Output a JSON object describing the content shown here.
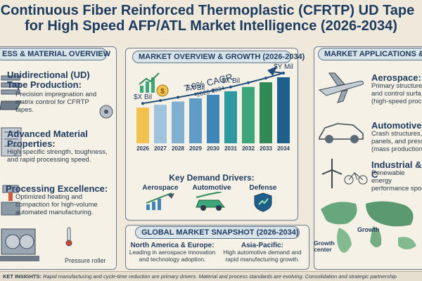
{
  "title": {
    "line1": "Continuous Fiber Reinforced Thermoplastic (CFRTP) UD Tape",
    "line2": "for High Speed AFP/ATL Market Intelligence (2026-2034)"
  },
  "left_panel": {
    "header": "ESS & MATERIAL OVERVIEW",
    "items": [
      {
        "heading": "Unidirectional (UD) Tape Production:",
        "desc": "Precision impregnation and matrix control for CFRTP tapes."
      },
      {
        "heading": "Advanced Material Properties:",
        "desc": "High specific strength, toughness, and rapid processing speed."
      },
      {
        "heading": "Processing Excellence:",
        "desc": "Optimized heating and compaction for high-volume automated manufacturing."
      }
    ],
    "roller_label": "Pressure roller"
  },
  "center_panel": {
    "header": "MARKET OVERVIEW & GROWTH (2026-2034)",
    "cagr_label": "7.9% CAGR",
    "cagr_period": "2026-2034",
    "drivers_title": "Key Demand Drivers:",
    "drivers": [
      "Aerospace",
      "Automotive",
      "Defense"
    ]
  },
  "chart_data": {
    "type": "bar",
    "categories": [
      "2026",
      "2027",
      "2028",
      "2029",
      "2030",
      "2031",
      "2032",
      "2033",
      "2034"
    ],
    "values": [
      1.0,
      1.08,
      1.17,
      1.26,
      1.36,
      1.46,
      1.58,
      1.71,
      1.85
    ],
    "point_labels": [
      {
        "index": 0,
        "text": "$X Bil"
      },
      {
        "index": 3,
        "text": "$X Bil"
      },
      {
        "index": 5,
        "text": "$X Bil"
      },
      {
        "index": 8,
        "text": "$Y Mil"
      }
    ],
    "trend_line": true,
    "colors": [
      "#f2c14e",
      "#9fc3dc",
      "#7fb0d2",
      "#5f9cc6",
      "#3f86b8",
      "#2e9aa0",
      "#3aa67a",
      "#2f8a57",
      "#1f5f8b"
    ]
  },
  "snapshot": {
    "header": "GLOBAL MARKET SNAPSHOT (2026-2034)",
    "regions": [
      {
        "name": "North America & Europe:",
        "desc": "Leading in aerospace innovation and technology adoption."
      },
      {
        "name": "Asia-Pacific:",
        "desc": "High automotive demand and rapid manufacturing growth."
      }
    ]
  },
  "right_panel": {
    "header": "MARKET APPLICATIONS & US",
    "items": [
      {
        "heading": "Aerospace:",
        "desc": "Primary structure and control surfa (high-speed proc"
      },
      {
        "heading": "Automotive:",
        "desc": "Crash structures, panels, and press (mass production"
      },
      {
        "heading": "Industrial & C",
        "desc": "Renewable energy performance spor and advanced ma"
      }
    ],
    "map_labels": {
      "growth": "Growth",
      "growth_center": "Growth center"
    }
  },
  "footer": {
    "label": "KET INSIGHTS:",
    "text": "Rapid manufacturing and cycle-time reduction are primary drivers. Material and process standards are evolving. Consolidation and strategic partnership"
  }
}
